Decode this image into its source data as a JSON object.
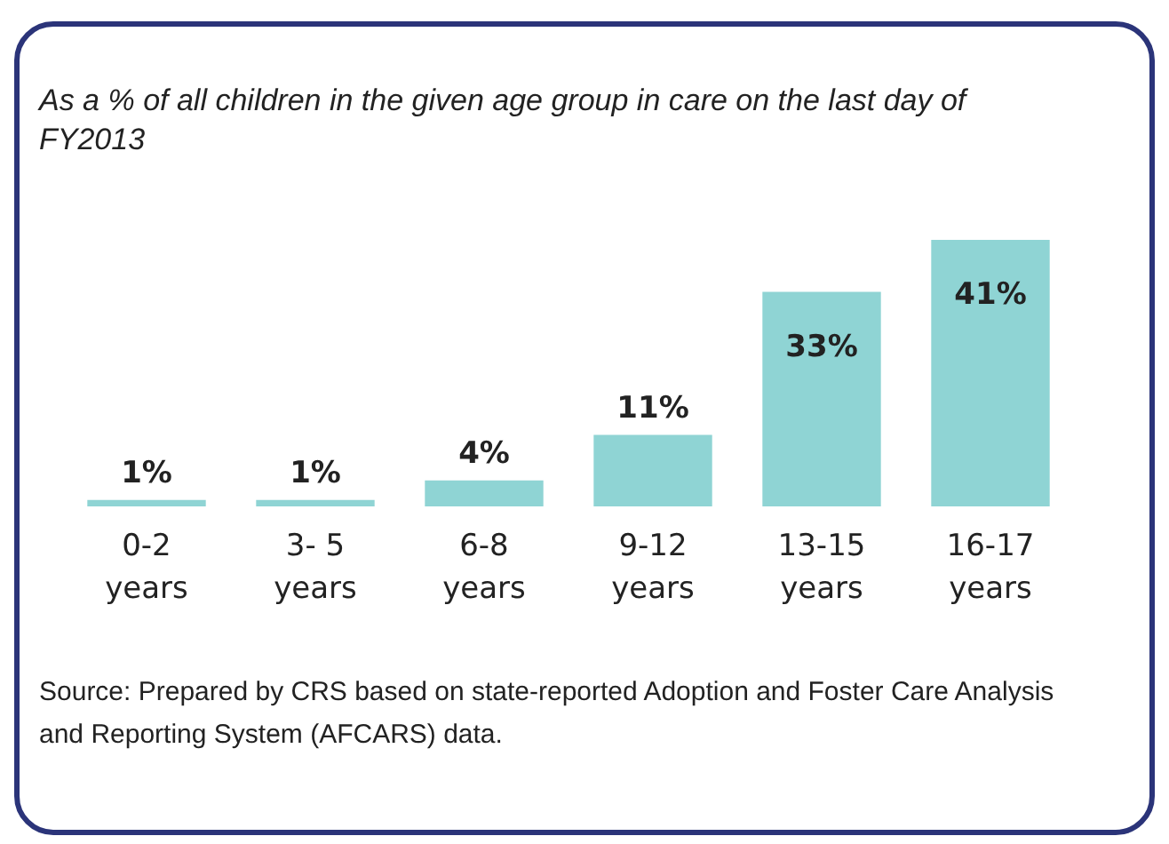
{
  "chart_data": {
    "type": "bar",
    "title": "As a % of all children in the given age group in care on the last day of FY2013",
    "categories": [
      "0-2 years",
      "3- 5 years",
      "6-8 years",
      "9-12 years",
      "13-15 years",
      "16-17 years"
    ],
    "values": [
      1,
      1,
      4,
      11,
      33,
      41
    ],
    "value_labels": [
      "1%",
      "1%",
      "4%",
      "11%",
      "33%",
      "41%"
    ],
    "color": "#8fd4d4",
    "annotations": [
      "Source: Prepared by CRS based on state-reported Adoption and Foster Care Analysis and Reporting System (AFCARS) data."
    ]
  }
}
